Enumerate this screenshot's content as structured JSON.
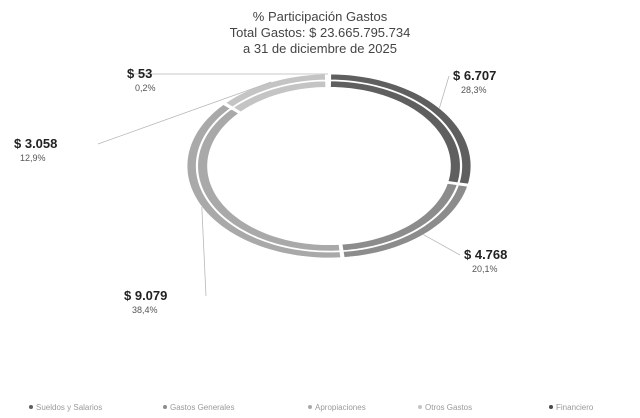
{
  "chart_data": {
    "type": "pie",
    "title": [
      "% Participación Gastos",
      "Total Gastos: $ 23.665.795.734",
      "a 31 de diciembre de 2025"
    ],
    "slices": [
      {
        "name": "Sueldos y Salarios",
        "value": 6707,
        "label": "$ 6.707",
        "percent": "28,3%",
        "color": "#5f5f5f"
      },
      {
        "name": "Gastos Generales",
        "value": 4768,
        "label": "$ 4.768",
        "percent": "20,1%",
        "color": "#8c8c8c"
      },
      {
        "name": "Apropiaciones",
        "value": 9079,
        "label": "$ 9.079",
        "percent": "38,4%",
        "color": "#a9a9a9"
      },
      {
        "name": "Otros Gastos",
        "value": 3058,
        "label": "$ 3.058",
        "percent": "12,9%",
        "color": "#c4c4c4"
      },
      {
        "name": "Financiero",
        "value": 53,
        "label": "$ 53",
        "percent": "0,2%",
        "color": "#4a4a4a"
      }
    ],
    "legend_position": "bottom"
  }
}
